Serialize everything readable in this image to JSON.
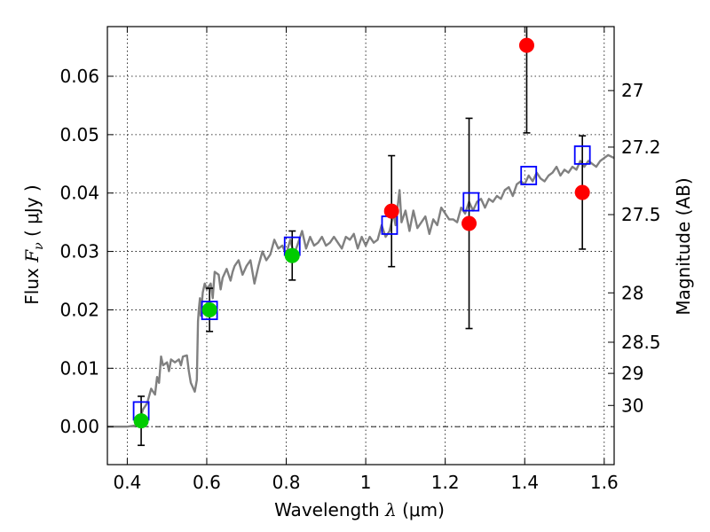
{
  "chart_data": {
    "type": "scatter",
    "xlabel": {
      "prefix": "Wavelength ",
      "symbol": "λ",
      "unit": " (μm)"
    },
    "ylabel": {
      "prefix": "Flux ",
      "symbol": "F",
      "sub": "ν",
      "unit": " ( μJy )"
    },
    "ylabel_right": "Magnitude (AB)",
    "xlim": [
      0.35,
      1.625
    ],
    "ylim": [
      -0.0065,
      0.0685
    ],
    "x_ticks": [
      0.4,
      0.6,
      0.8,
      1.0,
      1.2,
      1.4,
      1.6
    ],
    "x_tick_labels": [
      "0.4",
      "0.6",
      "0.8",
      "1",
      "1.2",
      "1.4",
      "1.6"
    ],
    "y_ticks": [
      0.0,
      0.01,
      0.02,
      0.03,
      0.04,
      0.05,
      0.06
    ],
    "y_tick_labels": [
      "0.00",
      "0.01",
      "0.02",
      "0.03",
      "0.04",
      "0.05",
      "0.06"
    ],
    "right_ticks": [
      {
        "mag": 27,
        "label": "27"
      },
      {
        "mag": 27.2,
        "label": "27.2"
      },
      {
        "mag": 27.5,
        "label": "27.5"
      },
      {
        "mag": 28,
        "label": "28"
      },
      {
        "mag": 28.5,
        "label": "28.5"
      },
      {
        "mag": 29,
        "label": "29"
      },
      {
        "mag": 30,
        "label": "30"
      }
    ],
    "grid": true,
    "zero_line": true,
    "series": [
      {
        "kind": "line",
        "color": "#808080",
        "x": [
          0.35,
          0.4,
          0.42,
          0.43,
          0.44,
          0.45,
          0.46,
          0.47,
          0.475,
          0.48,
          0.485,
          0.49,
          0.5,
          0.505,
          0.51,
          0.52,
          0.53,
          0.535,
          0.54,
          0.55,
          0.555,
          0.56,
          0.57,
          0.575,
          0.578,
          0.58,
          0.583,
          0.585,
          0.59,
          0.595,
          0.6,
          0.61,
          0.615,
          0.62,
          0.63,
          0.635,
          0.64,
          0.65,
          0.66,
          0.665,
          0.67,
          0.68,
          0.69,
          0.7,
          0.71,
          0.72,
          0.73,
          0.74,
          0.75,
          0.76,
          0.77,
          0.78,
          0.79,
          0.8,
          0.81,
          0.82,
          0.83,
          0.84,
          0.85,
          0.86,
          0.87,
          0.88,
          0.89,
          0.9,
          0.91,
          0.92,
          0.93,
          0.94,
          0.95,
          0.96,
          0.97,
          0.98,
          0.99,
          1.0,
          1.01,
          1.02,
          1.03,
          1.04,
          1.05,
          1.06,
          1.07,
          1.075,
          1.08,
          1.085,
          1.09,
          1.1,
          1.11,
          1.12,
          1.13,
          1.14,
          1.15,
          1.16,
          1.17,
          1.18,
          1.19,
          1.2,
          1.21,
          1.22,
          1.23,
          1.24,
          1.25,
          1.26,
          1.27,
          1.28,
          1.29,
          1.3,
          1.31,
          1.32,
          1.33,
          1.34,
          1.35,
          1.36,
          1.37,
          1.38,
          1.39,
          1.4,
          1.41,
          1.42,
          1.43,
          1.44,
          1.45,
          1.46,
          1.47,
          1.48,
          1.49,
          1.5,
          1.51,
          1.52,
          1.53,
          1.54,
          1.55,
          1.56,
          1.57,
          1.58,
          1.59,
          1.6,
          1.61,
          1.625
        ],
        "y": [
          0.0,
          0.0,
          0.0002,
          0.001,
          0.003,
          0.004,
          0.0065,
          0.0055,
          0.0085,
          0.0075,
          0.012,
          0.0105,
          0.011,
          0.0095,
          0.0115,
          0.011,
          0.0115,
          0.0105,
          0.012,
          0.0122,
          0.0095,
          0.0075,
          0.006,
          0.008,
          0.018,
          0.02,
          0.022,
          0.019,
          0.023,
          0.0245,
          0.0235,
          0.0245,
          0.022,
          0.0265,
          0.026,
          0.0235,
          0.0255,
          0.027,
          0.025,
          0.0265,
          0.0275,
          0.0285,
          0.026,
          0.0275,
          0.0285,
          0.0245,
          0.0275,
          0.03,
          0.0285,
          0.0295,
          0.032,
          0.0305,
          0.031,
          0.0295,
          0.032,
          0.0295,
          0.0315,
          0.0335,
          0.0305,
          0.0325,
          0.031,
          0.0315,
          0.0325,
          0.031,
          0.0315,
          0.0325,
          0.0315,
          0.0305,
          0.0325,
          0.032,
          0.033,
          0.0305,
          0.0325,
          0.031,
          0.0325,
          0.0315,
          0.032,
          0.0345,
          0.0325,
          0.0335,
          0.0365,
          0.0345,
          0.0375,
          0.0405,
          0.035,
          0.037,
          0.0335,
          0.037,
          0.034,
          0.035,
          0.036,
          0.033,
          0.0355,
          0.0345,
          0.0375,
          0.0365,
          0.0355,
          0.0355,
          0.035,
          0.0375,
          0.0365,
          0.0385,
          0.037,
          0.0385,
          0.039,
          0.0375,
          0.039,
          0.0385,
          0.0395,
          0.039,
          0.0405,
          0.041,
          0.0395,
          0.0415,
          0.042,
          0.0415,
          0.043,
          0.042,
          0.0435,
          0.0425,
          0.042,
          0.043,
          0.0435,
          0.0445,
          0.043,
          0.044,
          0.0435,
          0.0445,
          0.044,
          0.0455,
          0.0445,
          0.0455,
          0.045,
          0.0445,
          0.0455,
          0.046,
          0.0465,
          0.046
        ]
      },
      {
        "kind": "squares",
        "color": "#0000ff",
        "x": [
          0.435,
          0.607,
          0.815,
          1.06,
          1.265,
          1.41,
          1.545
        ],
        "y": [
          0.0027,
          0.0199,
          0.0309,
          0.0345,
          0.0385,
          0.043,
          0.0465
        ]
      },
      {
        "kind": "points",
        "color": "#00cc00",
        "x": [
          0.435,
          0.607,
          0.815
        ],
        "y": [
          0.001,
          0.02,
          0.0293
        ],
        "err": [
          0.0042,
          0.0037,
          0.0042
        ]
      },
      {
        "kind": "points",
        "color": "#ff0000",
        "x": [
          1.065,
          1.26,
          1.405,
          1.545
        ],
        "y": [
          0.0369,
          0.0348,
          0.0653,
          0.0401
        ],
        "err": [
          0.0095,
          0.018,
          0.015,
          0.0097
        ]
      }
    ]
  }
}
